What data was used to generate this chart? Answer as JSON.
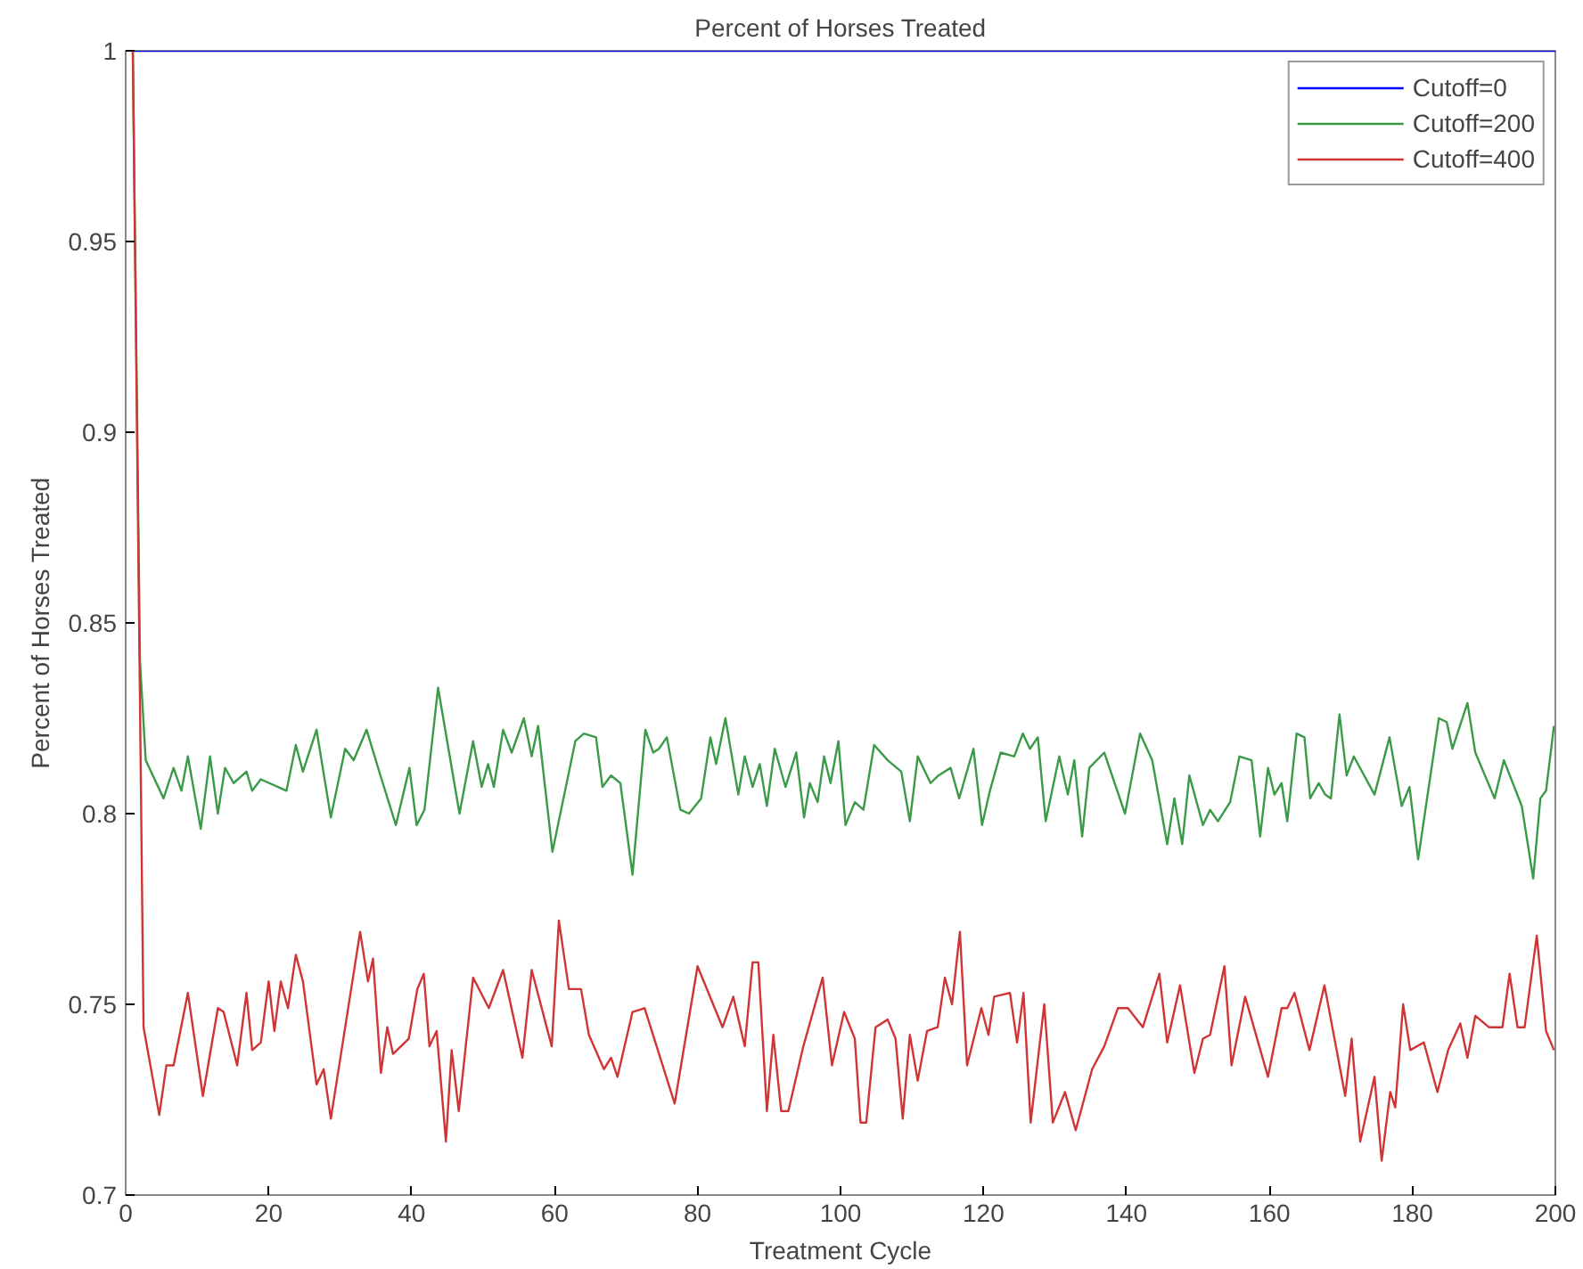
{
  "chart_data": {
    "type": "line",
    "title": "Percent of Horses Treated",
    "xlabel": "Treatment Cycle",
    "ylabel": "Percent of Horses Treated",
    "xlim": [
      0,
      200
    ],
    "ylim": [
      0.7,
      1
    ],
    "xticks": [
      0,
      20,
      40,
      60,
      80,
      100,
      120,
      140,
      160,
      180,
      200
    ],
    "yticks": [
      {
        "value": 0.7,
        "label": "0.7"
      },
      0.75,
      {
        "value": 0.8,
        "label": "0.8"
      },
      0.85,
      {
        "value": 0.9,
        "label": "0.9"
      },
      0.95,
      {
        "value": 1,
        "label": "1"
      }
    ],
    "grid": false,
    "legend": "top right",
    "line_style": "solid",
    "marker": "none",
    "series": [
      {
        "name": "Cutoff=0",
        "color": "#0000ff",
        "x": [
          1,
          200
        ],
        "values": [
          1,
          1
        ]
      },
      {
        "name": "Cutoff=200",
        "color": "#3a9a48",
        "x": [
          1,
          2,
          2.8,
          5.3,
          6.7,
          7.8,
          8.7,
          10.5,
          11.8,
          12.9,
          13.9,
          15.1,
          16.9,
          17.7,
          18.9,
          22.5,
          23.8,
          24.8,
          26.7,
          28.7,
          30.7,
          31.9,
          33.7,
          35.8,
          37.8,
          39.7,
          40.7,
          41.8,
          43.7,
          46.7,
          48.6,
          49.8,
          50.7,
          51.5,
          52.8,
          54.0,
          55.7,
          56.8,
          57.7,
          59.7,
          62.9,
          64.1,
          65.8,
          66.7,
          67.9,
          69.2,
          70.9,
          72.7,
          73.8,
          74.6,
          75.7,
          77.6,
          78.8,
          80.5,
          81.8,
          82.6,
          83.9,
          85.7,
          86.6,
          87.7,
          88.7,
          89.7,
          90.8,
          92.3,
          93.8,
          94.9,
          95.7,
          96.8,
          97.7,
          98.6,
          99.7,
          100.7,
          102.0,
          103.2,
          104.7,
          106.6,
          108.5,
          109.7,
          110.8,
          112.6,
          113.7,
          115.4,
          116.6,
          118.6,
          119.8,
          120.9,
          122.4,
          124.3,
          125.5,
          126.5,
          127.6,
          128.7,
          130.6,
          131.8,
          132.7,
          133.8,
          134.8,
          136.9,
          139.8,
          141.9,
          143.6,
          145.7,
          146.7,
          147.8,
          148.8,
          150.7,
          151.7,
          152.8,
          154.5,
          155.8,
          157.5,
          158.7,
          159.8,
          160.7,
          161.7,
          162.5,
          163.8,
          164.9,
          165.7,
          166.9,
          167.8,
          168.6,
          169.8,
          170.8,
          171.8,
          174.7,
          176.8,
          178.5,
          179.6,
          180.8,
          183.7,
          184.8,
          185.6,
          187.7,
          188.8,
          191.5,
          192.8,
          195.3,
          196.9,
          197.9,
          198.7,
          199.8
        ],
        "values": [
          1.0,
          0.84,
          0.814,
          0.804,
          0.812,
          0.806,
          0.815,
          0.796,
          0.815,
          0.8,
          0.812,
          0.808,
          0.811,
          0.806,
          0.809,
          0.806,
          0.818,
          0.811,
          0.822,
          0.799,
          0.817,
          0.814,
          0.822,
          0.809,
          0.797,
          0.812,
          0.797,
          0.801,
          0.833,
          0.8,
          0.819,
          0.807,
          0.813,
          0.807,
          0.822,
          0.816,
          0.825,
          0.815,
          0.823,
          0.79,
          0.819,
          0.821,
          0.82,
          0.807,
          0.81,
          0.808,
          0.784,
          0.822,
          0.816,
          0.817,
          0.82,
          0.801,
          0.8,
          0.804,
          0.82,
          0.813,
          0.825,
          0.805,
          0.815,
          0.807,
          0.813,
          0.802,
          0.817,
          0.807,
          0.816,
          0.799,
          0.808,
          0.803,
          0.815,
          0.808,
          0.819,
          0.797,
          0.803,
          0.801,
          0.818,
          0.814,
          0.811,
          0.798,
          0.815,
          0.808,
          0.81,
          0.812,
          0.804,
          0.817,
          0.797,
          0.806,
          0.816,
          0.815,
          0.821,
          0.817,
          0.82,
          0.798,
          0.815,
          0.805,
          0.814,
          0.794,
          0.812,
          0.816,
          0.8,
          0.821,
          0.814,
          0.792,
          0.804,
          0.792,
          0.81,
          0.797,
          0.801,
          0.798,
          0.803,
          0.815,
          0.814,
          0.794,
          0.812,
          0.805,
          0.808,
          0.798,
          0.821,
          0.82,
          0.804,
          0.808,
          0.805,
          0.804,
          0.826,
          0.81,
          0.815,
          0.805,
          0.82,
          0.802,
          0.807,
          0.788,
          0.825,
          0.824,
          0.817,
          0.829,
          0.816,
          0.804,
          0.814,
          0.802,
          0.783,
          0.804,
          0.806,
          0.823
        ]
      },
      {
        "name": "Cutoff=400",
        "color": "#d03434",
        "x": [
          1,
          2.5,
          4.7,
          5.7,
          6.7,
          8.7,
          10.8,
          12.9,
          13.7,
          15.6,
          16.9,
          17.7,
          18.9,
          20.0,
          20.8,
          21.7,
          22.7,
          23.8,
          24.8,
          26.7,
          27.7,
          28.7,
          32.8,
          33.9,
          34.6,
          35.7,
          36.6,
          37.4,
          39.6,
          40.8,
          41.7,
          42.5,
          43.5,
          44.8,
          45.6,
          46.6,
          48.6,
          50.8,
          52.8,
          55.5,
          56.8,
          59.6,
          60.6,
          62.0,
          63.7,
          64.8,
          66.9,
          67.9,
          68.8,
          70.9,
          72.6,
          76.8,
          80.0,
          83.5,
          85.0,
          86.6,
          87.7,
          88.5,
          89.7,
          90.6,
          91.7,
          92.7,
          94.8,
          97.5,
          98.8,
          100.5,
          102.0,
          102.8,
          103.6,
          104.9,
          106.6,
          107.7,
          108.7,
          109.7,
          110.8,
          112.1,
          113.6,
          114.6,
          115.6,
          116.7,
          117.7,
          119.7,
          120.7,
          121.5,
          123.7,
          124.7,
          125.6,
          126.6,
          128.5,
          129.7,
          131.4,
          132.9,
          135.2,
          136.9,
          138.8,
          140.2,
          142.3,
          144.6,
          145.7,
          147.5,
          149.5,
          150.7,
          151.7,
          153.7,
          154.7,
          156.6,
          159.8,
          161.7,
          162.5,
          163.5,
          165.6,
          167.7,
          170.6,
          171.5,
          172.7,
          174.7,
          175.7,
          176.9,
          177.6,
          178.7,
          179.7,
          181.6,
          183.5,
          185.0,
          186.7,
          187.7,
          188.8,
          190.7,
          192.6,
          193.6,
          194.7,
          195.7,
          197.4,
          198.7,
          199.8
        ],
        "values": [
          1.0,
          0.744,
          0.721,
          0.734,
          0.734,
          0.753,
          0.726,
          0.749,
          0.748,
          0.734,
          0.753,
          0.738,
          0.74,
          0.756,
          0.743,
          0.756,
          0.749,
          0.763,
          0.756,
          0.729,
          0.733,
          0.72,
          0.769,
          0.756,
          0.762,
          0.732,
          0.744,
          0.737,
          0.741,
          0.754,
          0.758,
          0.739,
          0.743,
          0.714,
          0.738,
          0.722,
          0.757,
          0.749,
          0.759,
          0.736,
          0.759,
          0.739,
          0.772,
          0.754,
          0.754,
          0.742,
          0.733,
          0.736,
          0.731,
          0.748,
          0.749,
          0.724,
          0.76,
          0.744,
          0.752,
          0.739,
          0.761,
          0.761,
          0.722,
          0.742,
          0.722,
          0.722,
          0.739,
          0.757,
          0.734,
          0.748,
          0.741,
          0.719,
          0.719,
          0.744,
          0.746,
          0.741,
          0.72,
          0.742,
          0.73,
          0.743,
          0.744,
          0.757,
          0.75,
          0.769,
          0.734,
          0.749,
          0.742,
          0.752,
          0.753,
          0.74,
          0.753,
          0.719,
          0.75,
          0.719,
          0.727,
          0.717,
          0.733,
          0.739,
          0.749,
          0.749,
          0.744,
          0.758,
          0.74,
          0.755,
          0.732,
          0.741,
          0.742,
          0.76,
          0.734,
          0.752,
          0.731,
          0.749,
          0.749,
          0.753,
          0.738,
          0.755,
          0.726,
          0.741,
          0.714,
          0.731,
          0.709,
          0.727,
          0.723,
          0.75,
          0.738,
          0.74,
          0.727,
          0.738,
          0.745,
          0.736,
          0.747,
          0.744,
          0.744,
          0.758,
          0.744,
          0.744,
          0.768,
          0.743,
          0.738
        ]
      }
    ]
  }
}
